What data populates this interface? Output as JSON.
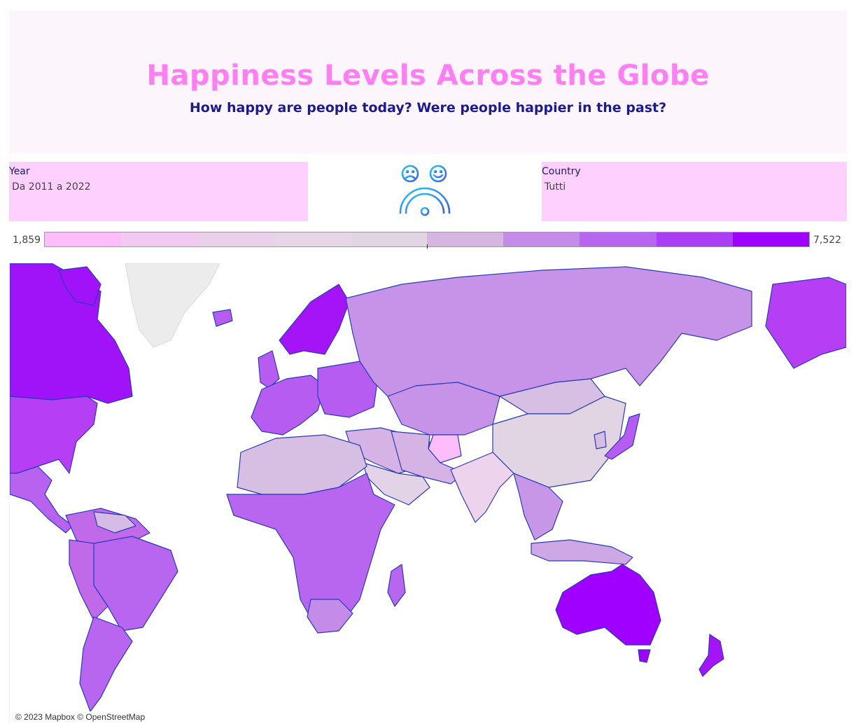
{
  "header": {
    "title": "Happiness Levels Across the Globe",
    "subtitle": "How happy are people today? Were people happier in the past?"
  },
  "filters": {
    "year": {
      "label": "Year",
      "value": "Da 2011 a 2022"
    },
    "country": {
      "label": "Country",
      "value": "Tutti"
    }
  },
  "logo": {
    "icon": "happiness-meter-icon"
  },
  "legend": {
    "min_label": "1,859",
    "max_label": "7,522",
    "colors": [
      "#fdbdfb",
      "#f3c9f2",
      "#ebd0ec",
      "#e6d6e8",
      "#e1d5e3",
      "#d4b6e1",
      "#c58be8",
      "#b766f0",
      "#aa3ef5",
      "#a000ff"
    ]
  },
  "map": {
    "regions": [
      {
        "name": "Greenland",
        "color": "#ececec"
      },
      {
        "name": "Canada",
        "color": "#a012f8"
      },
      {
        "name": "United States",
        "color": "#b63ef4"
      },
      {
        "name": "Alaska",
        "color": "#b63ef4"
      },
      {
        "name": "Mexico and Central America",
        "color": "#b863ef"
      },
      {
        "name": "South America",
        "color": "#c16ae9"
      },
      {
        "name": "Brazil",
        "color": "#b865ef"
      },
      {
        "name": "Venezuela",
        "color": "#d6bce4"
      },
      {
        "name": "Chile",
        "color": "#b865ef"
      },
      {
        "name": "Europe",
        "color": "#b75cf0"
      },
      {
        "name": "Nordics",
        "color": "#a414f7"
      },
      {
        "name": "Russia",
        "color": "#c793e8"
      },
      {
        "name": "Central Asia",
        "color": "#c793e8"
      },
      {
        "name": "Middle East",
        "color": "#d5b3e4"
      },
      {
        "name": "Saudi Arabia",
        "color": "#b865ef"
      },
      {
        "name": "North Africa",
        "color": "#d7bfe4"
      },
      {
        "name": "Sub-Saharan Africa",
        "color": "#e2d4e6"
      },
      {
        "name": "South Africa",
        "color": "#d6bfe3"
      },
      {
        "name": "Afghanistan",
        "color": "#fdbdfb"
      },
      {
        "name": "India",
        "color": "#eed3ed"
      },
      {
        "name": "China",
        "color": "#e1d5e3"
      },
      {
        "name": "Mongolia",
        "color": "#d6bde4"
      },
      {
        "name": "Japan",
        "color": "#b75cf0"
      },
      {
        "name": "Korea",
        "color": "#c58be8"
      },
      {
        "name": "Southeast Asia",
        "color": "#c896e7"
      },
      {
        "name": "Indonesia",
        "color": "#cda8e5"
      },
      {
        "name": "Australia",
        "color": "#a000ff"
      },
      {
        "name": "New Zealand",
        "color": "#a414f7"
      }
    ]
  },
  "attribution": "© 2023 Mapbox © OpenStreetMap"
}
